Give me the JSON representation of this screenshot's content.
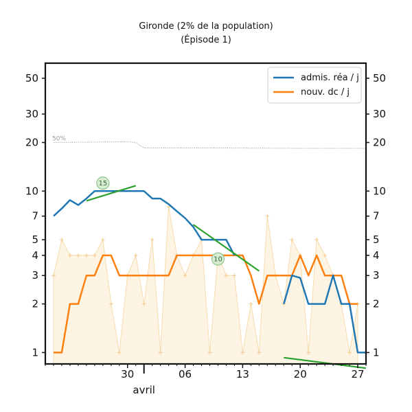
{
  "chart_data": {
    "type": "line",
    "title": "Gironde (2% de la population)",
    "subtitle": "(Épisode 1)",
    "xlabel": "",
    "ylabel": "",
    "yscale": "log",
    "ylim": [
      0.85,
      62
    ],
    "y_ticks": [
      1,
      2,
      3,
      4,
      5,
      7,
      10,
      20,
      30,
      50
    ],
    "x_range": [
      "2020-03-20",
      "2020-04-28"
    ],
    "x_ticks": [
      {
        "date": "2020-03-30",
        "label": "30"
      },
      {
        "date": "2020-04-06",
        "label": "06"
      },
      {
        "date": "2020-04-13",
        "label": "13"
      },
      {
        "date": "2020-04-20",
        "label": "20"
      },
      {
        "date": "2020-04-27",
        "label": "27"
      }
    ],
    "month_label": {
      "date": "2020-04-01",
      "label": "avril"
    },
    "grid": false,
    "legend_position": "top-right",
    "series": [
      {
        "name": "admis. réa / j",
        "color": "#1f77b4",
        "points": [
          [
            "2020-03-21",
            7.0
          ],
          [
            "2020-03-22",
            7.8
          ],
          [
            "2020-03-23",
            8.8
          ],
          [
            "2020-03-24",
            8.2
          ],
          [
            "2020-03-25",
            9.0
          ],
          [
            "2020-03-26",
            10.0
          ],
          [
            "2020-03-27",
            10.0
          ],
          [
            "2020-03-28",
            10.0
          ],
          [
            "2020-03-29",
            10.0
          ],
          [
            "2020-03-30",
            10.0
          ],
          [
            "2020-03-31",
            10.0
          ],
          [
            "2020-04-01",
            10.0
          ],
          [
            "2020-04-02",
            9.0
          ],
          [
            "2020-04-03",
            9.0
          ],
          [
            "2020-04-04",
            8.3
          ],
          [
            "2020-04-05",
            7.5
          ],
          [
            "2020-04-06",
            6.8
          ],
          [
            "2020-04-07",
            6.0
          ],
          [
            "2020-04-08",
            5.0
          ],
          [
            "2020-04-09",
            5.0
          ],
          [
            "2020-04-10",
            5.0
          ],
          [
            "2020-04-11",
            5.0
          ],
          [
            "2020-04-12",
            4.0
          ]
        ],
        "points_2": [
          [
            "2020-04-18",
            2.0
          ],
          [
            "2020-04-19",
            3.0
          ],
          [
            "2020-04-20",
            2.9
          ],
          [
            "2020-04-21",
            2.0
          ],
          [
            "2020-04-22",
            2.0
          ],
          [
            "2020-04-23",
            2.0
          ],
          [
            "2020-04-24",
            3.0
          ],
          [
            "2020-04-25",
            2.0
          ],
          [
            "2020-04-26",
            2.0
          ],
          [
            "2020-04-27",
            1.0
          ],
          [
            "2020-04-28",
            1.0
          ]
        ]
      },
      {
        "name": "nouv. dc / j",
        "color": "#ff7f0e",
        "points": [
          [
            "2020-03-21",
            1.0
          ],
          [
            "2020-03-22",
            1.0
          ],
          [
            "2020-03-23",
            2.0
          ],
          [
            "2020-03-24",
            2.0
          ],
          [
            "2020-03-25",
            3.0
          ],
          [
            "2020-03-26",
            3.0
          ],
          [
            "2020-03-27",
            4.0
          ],
          [
            "2020-03-28",
            4.0
          ],
          [
            "2020-03-29",
            3.0
          ],
          [
            "2020-03-30",
            3.0
          ],
          [
            "2020-03-31",
            3.0
          ],
          [
            "2020-04-01",
            3.0
          ],
          [
            "2020-04-02",
            3.0
          ],
          [
            "2020-04-03",
            3.0
          ],
          [
            "2020-04-04",
            3.0
          ],
          [
            "2020-04-05",
            4.0
          ],
          [
            "2020-04-06",
            4.0
          ],
          [
            "2020-04-07",
            4.0
          ],
          [
            "2020-04-08",
            4.0
          ],
          [
            "2020-04-09",
            4.0
          ],
          [
            "2020-04-10",
            4.0
          ],
          [
            "2020-04-11",
            4.0
          ],
          [
            "2020-04-12",
            4.0
          ],
          [
            "2020-04-13",
            4.0
          ],
          [
            "2020-04-14",
            3.0
          ],
          [
            "2020-04-15",
            2.0
          ],
          [
            "2020-04-16",
            3.0
          ],
          [
            "2020-04-17",
            3.0
          ],
          [
            "2020-04-18",
            3.0
          ],
          [
            "2020-04-19",
            3.0
          ],
          [
            "2020-04-20",
            4.0
          ],
          [
            "2020-04-21",
            3.0
          ],
          [
            "2020-04-22",
            4.0
          ],
          [
            "2020-04-23",
            3.0
          ],
          [
            "2020-04-24",
            3.0
          ],
          [
            "2020-04-25",
            3.0
          ],
          [
            "2020-04-26",
            2.0
          ],
          [
            "2020-04-27",
            2.0
          ]
        ]
      }
    ],
    "daily_raw": {
      "color": "#fdebcc",
      "points": [
        [
          "2020-03-21",
          3
        ],
        [
          "2020-03-22",
          5
        ],
        [
          "2020-03-23",
          4
        ],
        [
          "2020-03-24",
          4
        ],
        [
          "2020-03-25",
          4
        ],
        [
          "2020-03-26",
          4
        ],
        [
          "2020-03-27",
          5
        ],
        [
          "2020-03-28",
          2
        ],
        [
          "2020-03-29",
          1
        ],
        [
          "2020-03-30",
          3
        ],
        [
          "2020-03-31",
          4
        ],
        [
          "2020-04-01",
          2
        ],
        [
          "2020-04-02",
          5
        ],
        [
          "2020-04-03",
          1
        ],
        [
          "2020-04-04",
          8
        ],
        [
          "2020-04-05",
          4
        ],
        [
          "2020-04-06",
          3
        ],
        [
          "2020-04-07",
          4
        ],
        [
          "2020-04-08",
          5
        ],
        [
          "2020-04-09",
          1
        ],
        [
          "2020-04-10",
          4
        ],
        [
          "2020-04-11",
          3
        ],
        [
          "2020-04-12",
          3
        ],
        [
          "2020-04-13",
          1
        ],
        [
          "2020-04-14",
          2
        ],
        [
          "2020-04-15",
          1
        ],
        [
          "2020-04-16",
          7
        ],
        [
          "2020-04-17",
          3
        ],
        [
          "2020-04-18",
          2
        ],
        [
          "2020-04-19",
          5
        ],
        [
          "2020-04-20",
          4
        ],
        [
          "2020-04-21",
          1
        ],
        [
          "2020-04-22",
          5
        ],
        [
          "2020-04-23",
          4
        ],
        [
          "2020-04-24",
          3
        ],
        [
          "2020-04-25",
          2
        ],
        [
          "2020-04-26",
          1
        ],
        [
          "2020-04-27",
          2
        ]
      ]
    },
    "trend_lines": [
      {
        "color": "#2ca02c",
        "points": [
          [
            "2020-03-25",
            8.7
          ],
          [
            "2020-03-31",
            10.8
          ]
        ],
        "label": "15",
        "label_at": [
          "2020-03-27",
          11.2
        ]
      },
      {
        "color": "#2ca02c",
        "points": [
          [
            "2020-04-07",
            6.2
          ],
          [
            "2020-04-15",
            3.2
          ]
        ],
        "label": "10",
        "label_at": [
          "2020-04-10",
          3.8
        ]
      },
      {
        "color": "#2ca02c",
        "points": [
          [
            "2020-04-18",
            0.93
          ],
          [
            "2020-04-28",
            0.8
          ]
        ]
      }
    ],
    "reference_line": {
      "label": "50%",
      "color": "#aaaaaa",
      "points": [
        [
          "2020-03-21",
          20
        ],
        [
          "2020-03-30",
          20.2
        ],
        [
          "2020-03-31",
          20.0
        ],
        [
          "2020-04-01",
          18.5
        ],
        [
          "2020-04-10",
          18.5
        ],
        [
          "2020-04-20",
          18.4
        ],
        [
          "2020-04-28",
          18.4
        ]
      ]
    }
  }
}
